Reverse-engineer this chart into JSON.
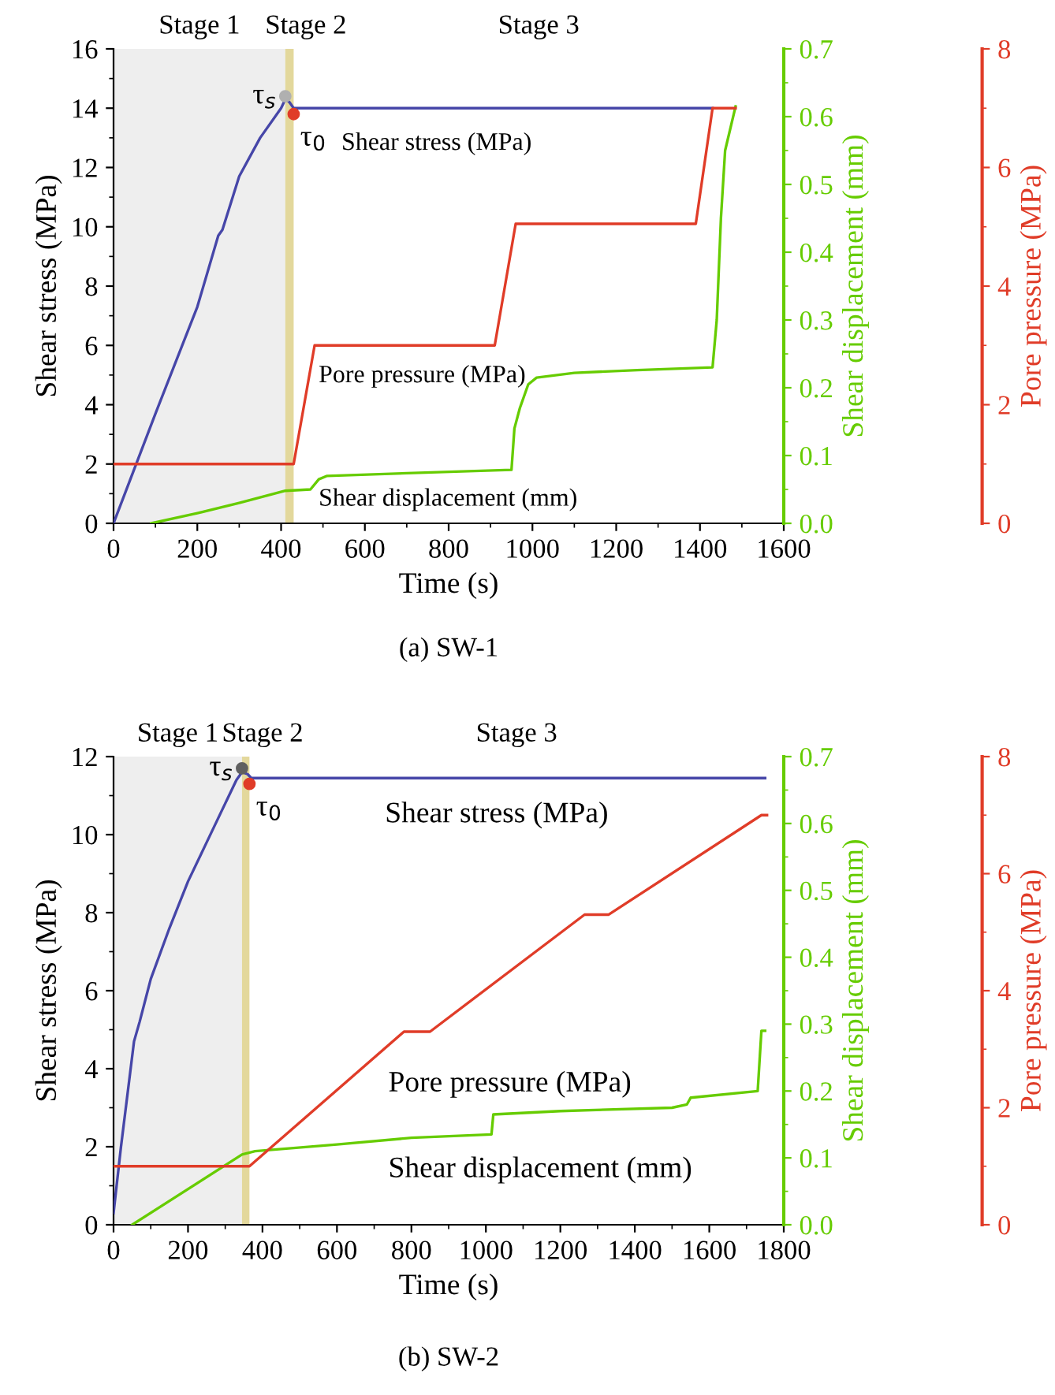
{
  "chart_data": [
    {
      "type": "line",
      "title": "(a) SW-1",
      "xlabel": "Time (s)",
      "ylabel": "Shear stress (MPa)",
      "y2label": "Shear displacement (mm)",
      "y3label": "Pore pressure (MPa)",
      "xlim": [
        0,
        1600
      ],
      "xticks": [
        0,
        200,
        400,
        600,
        800,
        1000,
        1200,
        1400,
        1600
      ],
      "ylim": [
        0,
        16
      ],
      "yticks": [
        0,
        2,
        4,
        6,
        8,
        10,
        12,
        14,
        16
      ],
      "y2lim": [
        0,
        0.7
      ],
      "y2ticks": [
        {
          "value": 0,
          "label": "0.0"
        },
        0.1,
        0.2,
        0.3,
        0.4,
        0.5,
        0.6,
        0.7
      ],
      "y3lim": [
        0,
        8
      ],
      "y3ticks": [
        0,
        2,
        4,
        6,
        8
      ],
      "bands": [
        {
          "axis": "x",
          "from": 0,
          "to": 410,
          "label": "Stage 1",
          "color": "#eeeeee"
        },
        {
          "axis": "x",
          "from": 410,
          "to": 430,
          "label": "Stage 2",
          "color": "#e3d89c"
        }
      ],
      "series": [
        {
          "name": "Shear stress (MPa)",
          "axis": "y",
          "color": "#4646a8",
          "x": [
            0,
            100,
            200,
            250,
            260,
            300,
            350,
            400,
            410,
            420,
            430,
            950,
            1430
          ],
          "values": [
            0,
            3.7,
            7.3,
            9.7,
            9.9,
            11.7,
            13.0,
            14.0,
            14.3,
            14.2,
            14.0,
            14.0,
            14.0
          ]
        },
        {
          "name": "Pore pressure (MPa)",
          "axis": "y3",
          "color": "#e03c28",
          "x": [
            0,
            430,
            480,
            910,
            960,
            1390,
            1430,
            1485
          ],
          "values": [
            1.0,
            1.0,
            3.0,
            3.0,
            5.05,
            5.05,
            7.0,
            7.0
          ]
        },
        {
          "name": "Shear displacement (mm)",
          "axis": "y2",
          "color": "#66cc00",
          "x": [
            90,
            200,
            300,
            410,
            470,
            490,
            510,
            700,
            950,
            957,
            970,
            990,
            1010,
            1100,
            1250,
            1430,
            1440,
            1450,
            1460,
            1485
          ],
          "values": [
            0,
            0.015,
            0.03,
            0.048,
            0.05,
            0.065,
            0.07,
            0.074,
            0.079,
            0.14,
            0.17,
            0.205,
            0.215,
            0.222,
            0.226,
            0.23,
            0.3,
            0.45,
            0.55,
            0.615
          ]
        },
        {
          "axis": "y",
          "type": "scatter",
          "color": "#b0b0b0",
          "marker": "circle",
          "x": [
            410
          ],
          "values": [
            14.4
          ]
        },
        {
          "axis": "y",
          "type": "scatter",
          "color": "#e03c28",
          "marker": "circle",
          "x": [
            430
          ],
          "values": [
            13.8
          ]
        }
      ],
      "annotations": [
        {
          "text": "τ$_{s}$",
          "x": 410,
          "y": 14.4
        },
        {
          "text": "τ$_{0}$",
          "x": 430,
          "y": 13.8
        },
        "Stage 3"
      ]
    },
    {
      "type": "line",
      "title": "(b) SW-2",
      "xlabel": "Time (s)",
      "ylabel": "Shear stress (MPa)",
      "y2label": "Shear displacement (mm)",
      "y3label": "Pore pressure (MPa)",
      "xlim": [
        0,
        1800
      ],
      "xticks": [
        0,
        200,
        400,
        600,
        800,
        1000,
        1200,
        1400,
        1600,
        1800
      ],
      "ylim": [
        0,
        12
      ],
      "yticks": [
        0,
        2,
        4,
        6,
        8,
        10,
        12
      ],
      "y2lim": [
        0,
        0.7
      ],
      "y2ticks": [
        {
          "value": 0,
          "label": "0.0"
        },
        0.1,
        0.2,
        0.3,
        0.4,
        0.5,
        0.6,
        0.7
      ],
      "y3lim": [
        0,
        8
      ],
      "y3ticks": [
        0,
        2,
        4,
        6,
        8
      ],
      "bands": [
        {
          "axis": "x",
          "from": 0,
          "to": 345,
          "label": "Stage 1",
          "color": "#eeeeee"
        },
        {
          "axis": "x",
          "from": 345,
          "to": 365,
          "label": "Stage 2",
          "color": "#e3d89c"
        }
      ],
      "series": [
        {
          "name": "Shear stress (MPa)",
          "axis": "y",
          "color": "#4646a8",
          "x": [
            0,
            20,
            55,
            70,
            100,
            150,
            200,
            250,
            300,
            330,
            345,
            360,
            370,
            1750
          ],
          "values": [
            0.3,
            2.0,
            4.7,
            5.2,
            6.3,
            7.6,
            8.8,
            9.8,
            10.8,
            11.4,
            11.6,
            11.55,
            11.45,
            11.45
          ]
        },
        {
          "name": "Pore pressure (MPa)",
          "axis": "y3",
          "color": "#e03c28",
          "x": [
            0,
            365,
            780,
            850,
            1265,
            1330,
            1740,
            1755
          ],
          "values": [
            1.0,
            1.0,
            3.3,
            3.3,
            5.3,
            5.3,
            7.0,
            7.0
          ]
        },
        {
          "name": "Shear displacement (mm)",
          "axis": "y2",
          "color": "#66cc00",
          "x": [
            50,
            345,
            380,
            600,
            800,
            1015,
            1020,
            1200,
            1500,
            1540,
            1550,
            1730,
            1740,
            1750
          ],
          "values": [
            0,
            0.105,
            0.11,
            0.12,
            0.13,
            0.135,
            0.165,
            0.17,
            0.175,
            0.18,
            0.19,
            0.2,
            0.29,
            0.29
          ]
        },
        {
          "axis": "y",
          "type": "scatter",
          "color": "#606060",
          "marker": "circle",
          "x": [
            345
          ],
          "values": [
            11.7
          ]
        },
        {
          "axis": "y",
          "type": "scatter",
          "color": "#e03c28",
          "marker": "circle",
          "x": [
            365
          ],
          "values": [
            11.3
          ]
        }
      ],
      "annotations": [
        {
          "text": "τ$_{s}$",
          "x": 345,
          "y": 11.7
        },
        {
          "text": "τ$_{0}$",
          "x": 365,
          "y": 11.3
        },
        "Stage 3"
      ]
    }
  ]
}
